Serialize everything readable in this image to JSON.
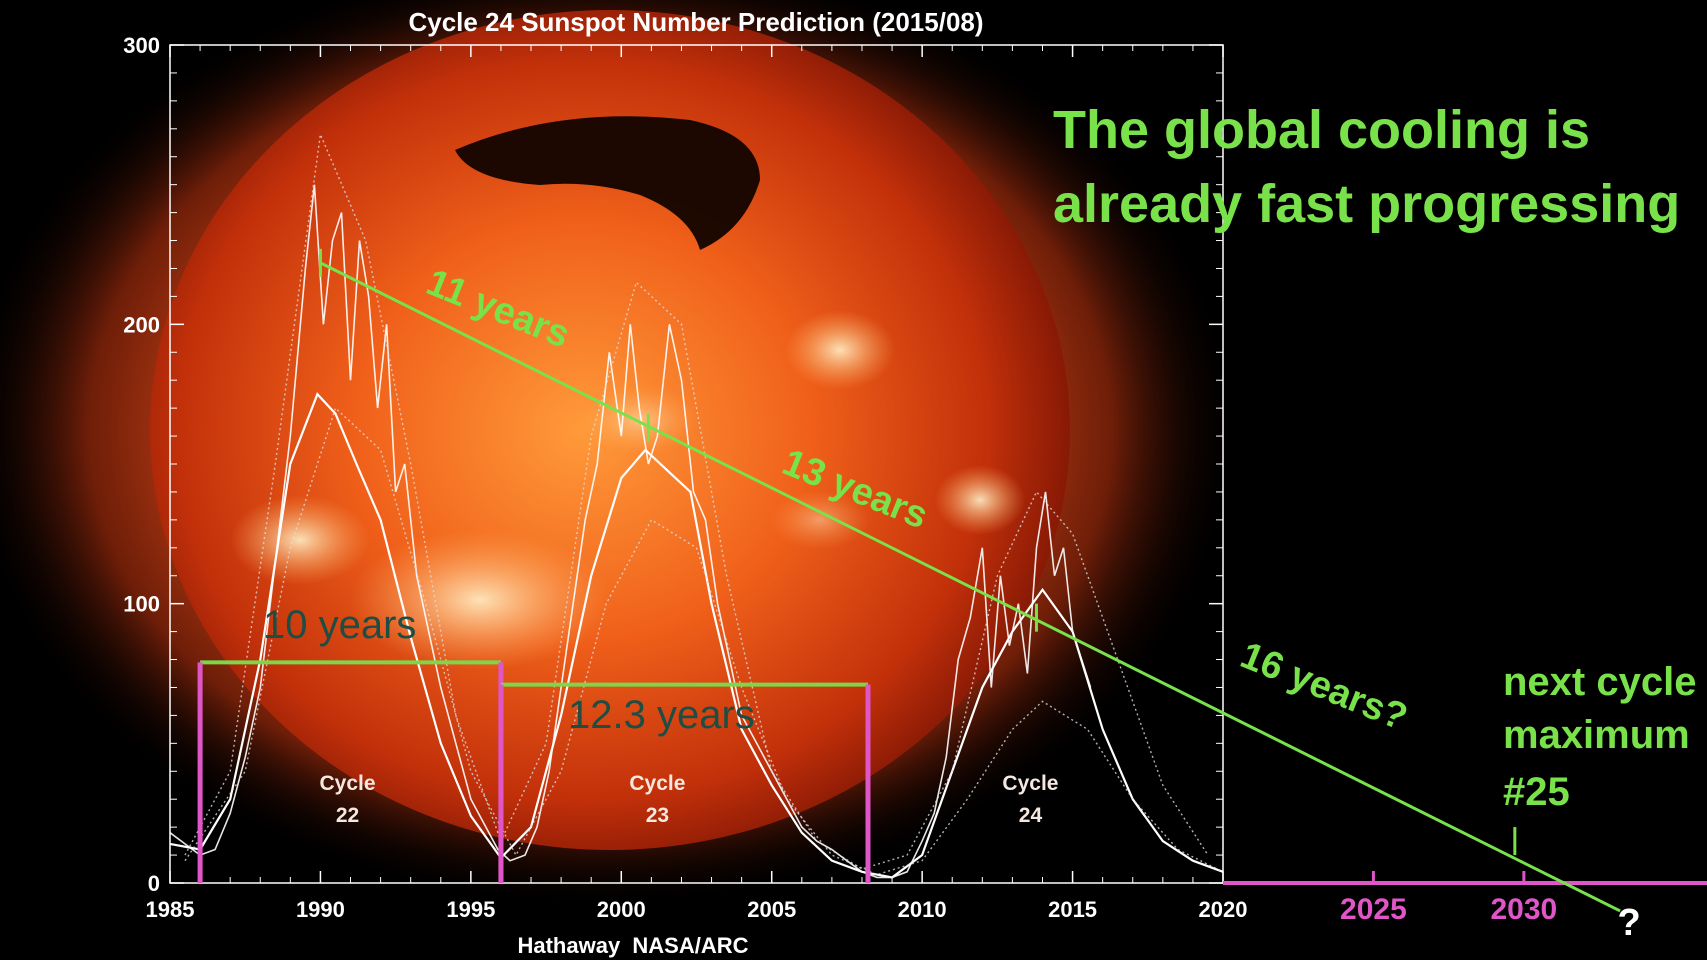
{
  "chart_data": {
    "type": "line",
    "title": "Cycle 24 Sunspot Number Prediction (2015/08)",
    "credit": "Hathaway  NASA/ARC",
    "xlim": [
      1985,
      2020
    ],
    "ylim": [
      0,
      300
    ],
    "x_ticks": [
      1985,
      1990,
      1995,
      2000,
      2005,
      2010,
      2015,
      2020
    ],
    "y_ticks": [
      0,
      100,
      200,
      300
    ],
    "extended_x_ticks": [
      "2025",
      "2030",
      "?"
    ],
    "background": "X-ray image of the Sun",
    "cycles": [
      {
        "label": "Cycle",
        "number": "22",
        "x": 1990.9
      },
      {
        "label": "Cycle",
        "number": "23",
        "x": 2001.2
      },
      {
        "label": "Cycle",
        "number": "24",
        "x": 2013.6
      }
    ],
    "series": [
      {
        "type": "monthly",
        "color": "#ffffff",
        "points": [
          [
            1985.0,
            18
          ],
          [
            1985.5,
            14
          ],
          [
            1986.0,
            10
          ],
          [
            1986.5,
            12
          ],
          [
            1987.0,
            25
          ],
          [
            1987.5,
            45
          ],
          [
            1988.0,
            70
          ],
          [
            1988.5,
            115
          ],
          [
            1989.0,
            160
          ],
          [
            1989.5,
            220
          ],
          [
            1989.8,
            250
          ],
          [
            1990.1,
            200
          ],
          [
            1990.4,
            230
          ],
          [
            1990.7,
            240
          ],
          [
            1991.0,
            180
          ],
          [
            1991.3,
            230
          ],
          [
            1991.6,
            210
          ],
          [
            1991.9,
            170
          ],
          [
            1992.2,
            200
          ],
          [
            1992.5,
            140
          ],
          [
            1992.8,
            150
          ],
          [
            1993.2,
            110
          ],
          [
            1993.6,
            90
          ],
          [
            1994.0,
            70
          ],
          [
            1994.5,
            50
          ],
          [
            1995.0,
            30
          ],
          [
            1995.5,
            20
          ],
          [
            1995.9,
            12
          ],
          [
            1996.3,
            8
          ],
          [
            1996.8,
            10
          ],
          [
            1997.2,
            20
          ],
          [
            1997.6,
            40
          ],
          [
            1998.0,
            70
          ],
          [
            1998.4,
            100
          ],
          [
            1998.8,
            130
          ],
          [
            1999.2,
            150
          ],
          [
            1999.6,
            190
          ],
          [
            2000.0,
            160
          ],
          [
            2000.3,
            200
          ],
          [
            2000.6,
            170
          ],
          [
            2000.9,
            150
          ],
          [
            2001.2,
            160
          ],
          [
            2001.6,
            200
          ],
          [
            2002.0,
            180
          ],
          [
            2002.4,
            140
          ],
          [
            2002.8,
            130
          ],
          [
            2003.2,
            100
          ],
          [
            2003.6,
            80
          ],
          [
            2004.0,
            60
          ],
          [
            2004.5,
            50
          ],
          [
            2005.0,
            40
          ],
          [
            2005.5,
            30
          ],
          [
            2006.0,
            20
          ],
          [
            2006.5,
            15
          ],
          [
            2007.0,
            12
          ],
          [
            2007.5,
            8
          ],
          [
            2008.0,
            4
          ],
          [
            2008.5,
            2
          ],
          [
            2009.0,
            2
          ],
          [
            2009.5,
            4
          ],
          [
            2010.0,
            15
          ],
          [
            2010.4,
            25
          ],
          [
            2010.8,
            45
          ],
          [
            2011.2,
            80
          ],
          [
            2011.6,
            95
          ],
          [
            2012.0,
            120
          ],
          [
            2012.3,
            70
          ],
          [
            2012.6,
            110
          ],
          [
            2012.9,
            85
          ],
          [
            2013.2,
            100
          ],
          [
            2013.5,
            75
          ],
          [
            2013.8,
            120
          ],
          [
            2014.1,
            140
          ],
          [
            2014.4,
            110
          ],
          [
            2014.7,
            120
          ],
          [
            2015.0,
            90
          ],
          [
            2015.3,
            80
          ],
          [
            2015.6,
            70
          ]
        ]
      },
      {
        "type": "smoothed",
        "color": "#ffffff",
        "points": [
          [
            1985.0,
            14
          ],
          [
            1986.0,
            12
          ],
          [
            1987.0,
            30
          ],
          [
            1988.0,
            80
          ],
          [
            1989.0,
            150
          ],
          [
            1989.9,
            175
          ],
          [
            1990.5,
            168
          ],
          [
            1991.2,
            150
          ],
          [
            1992.0,
            130
          ],
          [
            1993.0,
            88
          ],
          [
            1994.0,
            50
          ],
          [
            1995.0,
            24
          ],
          [
            1996.0,
            9
          ],
          [
            1997.0,
            20
          ],
          [
            1998.0,
            60
          ],
          [
            1999.0,
            110
          ],
          [
            2000.0,
            145
          ],
          [
            2000.8,
            155
          ],
          [
            2001.5,
            148
          ],
          [
            2002.3,
            140
          ],
          [
            2003.0,
            100
          ],
          [
            2004.0,
            55
          ],
          [
            2005.0,
            35
          ],
          [
            2006.0,
            18
          ],
          [
            2007.0,
            8
          ],
          [
            2008.0,
            4
          ],
          [
            2009.0,
            2
          ],
          [
            2010.0,
            10
          ],
          [
            2011.0,
            40
          ],
          [
            2012.0,
            70
          ],
          [
            2013.0,
            90
          ],
          [
            2014.0,
            105
          ],
          [
            2015.0,
            90
          ],
          [
            2016.0,
            55
          ],
          [
            2017.0,
            30
          ],
          [
            2018.0,
            15
          ],
          [
            2019.0,
            8
          ],
          [
            2020.0,
            4
          ]
        ]
      },
      {
        "type": "prediction-envelope",
        "color": "#dddddd",
        "points": [
          [
            1985.5,
            10
          ],
          [
            1987.0,
            40
          ],
          [
            1988.5,
            150
          ],
          [
            1990.0,
            268
          ],
          [
            1991.5,
            230
          ],
          [
            1993.0,
            150
          ],
          [
            1994.5,
            60
          ],
          [
            1996.0,
            15
          ],
          [
            1997.5,
            50
          ],
          [
            1999.0,
            160
          ],
          [
            2000.5,
            215
          ],
          [
            2002.0,
            200
          ],
          [
            2003.5,
            110
          ],
          [
            2005.0,
            40
          ],
          [
            2006.5,
            15
          ],
          [
            2008.0,
            5
          ],
          [
            2009.5,
            10
          ],
          [
            2011.0,
            40
          ],
          [
            2012.5,
            110
          ],
          [
            2013.8,
            140
          ],
          [
            2015.0,
            125
          ],
          [
            2016.5,
            80
          ],
          [
            2018.0,
            35
          ],
          [
            2019.5,
            10
          ]
        ]
      },
      {
        "type": "prediction-envelope",
        "color": "#dddddd",
        "points": [
          [
            1985.5,
            8
          ],
          [
            1987.5,
            40
          ],
          [
            1989.0,
            120
          ],
          [
            1990.5,
            170
          ],
          [
            1992.0,
            155
          ],
          [
            1993.5,
            100
          ],
          [
            1995.0,
            40
          ],
          [
            1996.5,
            10
          ],
          [
            1998.0,
            40
          ],
          [
            1999.5,
            100
          ],
          [
            2001.0,
            130
          ],
          [
            2002.5,
            120
          ],
          [
            2004.0,
            70
          ],
          [
            2005.5,
            30
          ],
          [
            2007.0,
            10
          ],
          [
            2008.5,
            3
          ],
          [
            2010.0,
            8
          ],
          [
            2011.5,
            30
          ],
          [
            2013.0,
            55
          ],
          [
            2014.0,
            65
          ],
          [
            2015.5,
            55
          ],
          [
            2017.0,
            30
          ],
          [
            2018.5,
            12
          ],
          [
            2020.0,
            4
          ]
        ]
      }
    ]
  },
  "annotations": {
    "headline_line1": "The global cooling is",
    "headline_line2": "already fast progressing",
    "years_11": "11 years",
    "years_13": "13 years",
    "years_16": "16 years?",
    "years_10": "10 years",
    "years_12_3": "12.3 years",
    "next_cycle_1": "next cycle",
    "next_cycle_2": "maximum",
    "next_cycle_3": "#25",
    "trend_line": {
      "from": [
        1990.0,
        222
      ],
      "to": [
        2033.2,
        -10
      ]
    },
    "peak_marks": [
      [
        1990.0,
        222
      ],
      [
        2000.9,
        163
      ],
      [
        2013.8,
        95
      ],
      [
        2029.7,
        15
      ]
    ],
    "bracket_10": {
      "start": 1986.0,
      "end": 1996.0,
      "level": 79
    },
    "bracket_12_3": {
      "start": 1996.0,
      "end": 2008.2,
      "level": 71
    },
    "colors": {
      "green": "#79e24a",
      "magenta": "#e055c8",
      "dark_teal": "#1e4d44",
      "bracket_green": "#7ed64a"
    }
  }
}
